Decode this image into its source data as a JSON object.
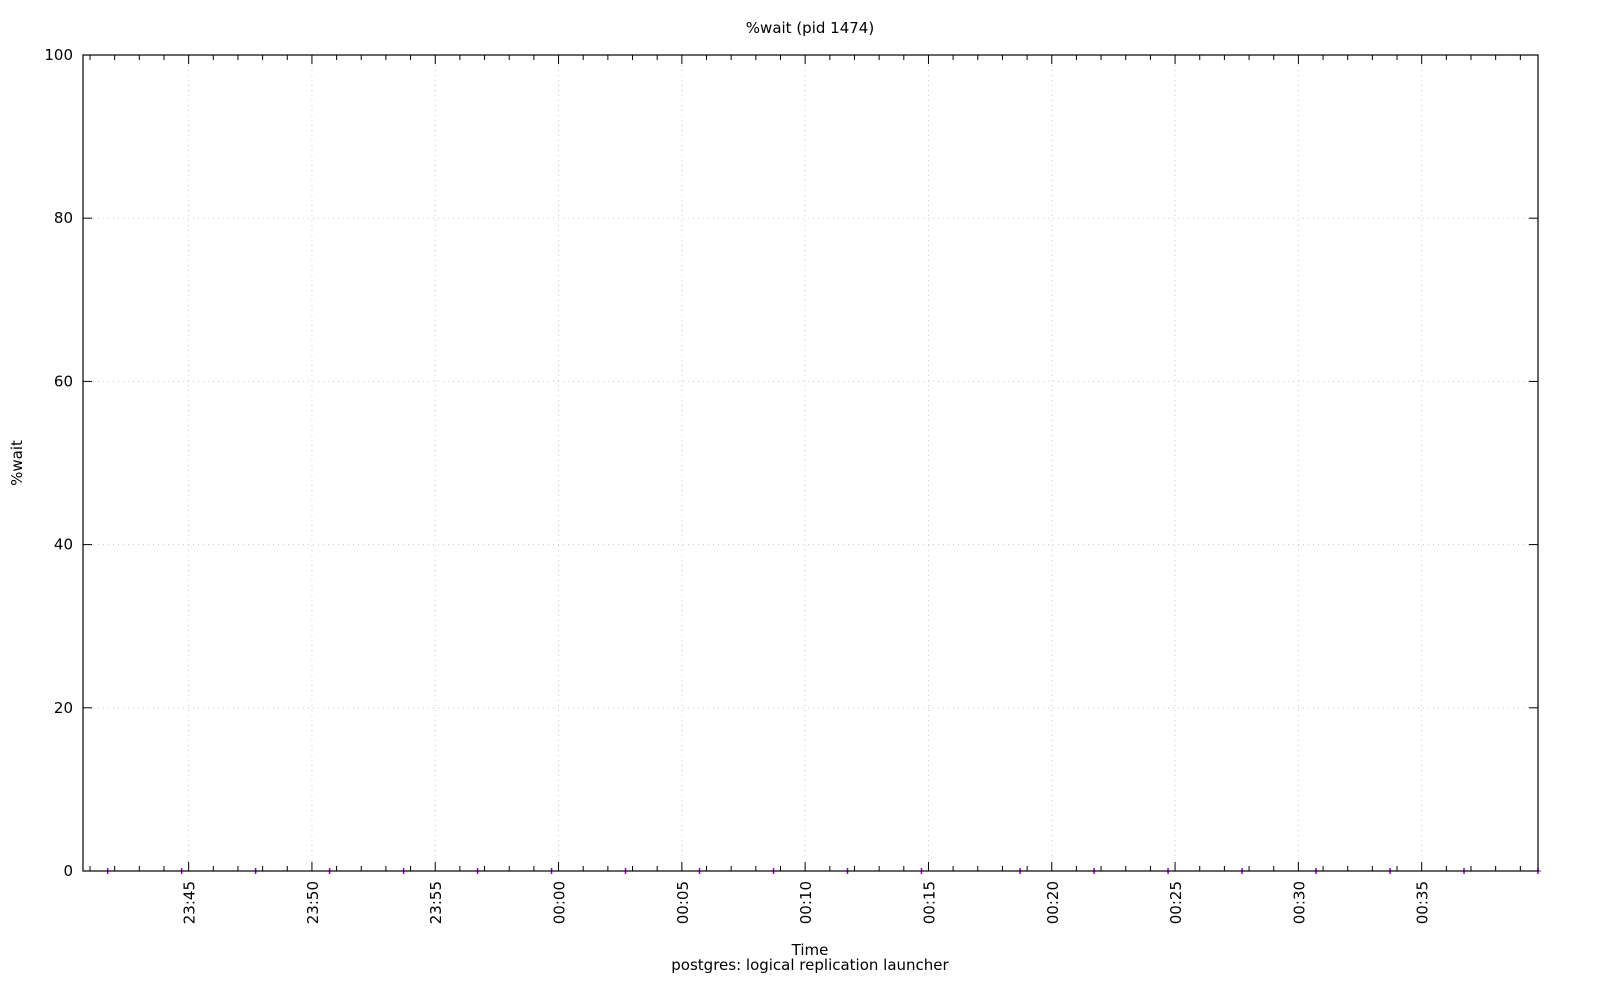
{
  "chart_data": {
    "type": "scatter",
    "title": "%wait (pid 1474)",
    "xlabel": "Time",
    "ylabel": "%wait",
    "subtitle": "postgres: logical replication launcher",
    "xlim": [
      "23:40:43",
      "00:39:43"
    ],
    "ylim": [
      0,
      100
    ],
    "yticks": [
      "0",
      "20",
      "40",
      "60",
      "80",
      "100"
    ],
    "xticks": [
      "23:45",
      "23:50",
      "23:55",
      "00:00",
      "00:05",
      "00:10",
      "00:15",
      "00:20",
      "00:25",
      "00:30",
      "00:35"
    ],
    "x_minor_tick_interval_minutes": 1,
    "grid": true,
    "series": [
      {
        "color": "#9400d3",
        "x": [
          "23:41:43",
          "23:44:43",
          "23:47:43",
          "23:50:43",
          "23:53:43",
          "23:56:43",
          "23:59:43",
          "00:02:43",
          "00:05:43",
          "00:08:43",
          "00:11:43",
          "00:14:43",
          "00:18:43",
          "00:21:43",
          "00:24:43",
          "00:27:43",
          "00:30:43",
          "00:33:43",
          "00:36:43",
          "00:39:43"
        ],
        "y": [
          0,
          0,
          0,
          0,
          0,
          0,
          0,
          0,
          0,
          0,
          0,
          0,
          0,
          0,
          0,
          0,
          0,
          0,
          0,
          0
        ]
      }
    ]
  }
}
